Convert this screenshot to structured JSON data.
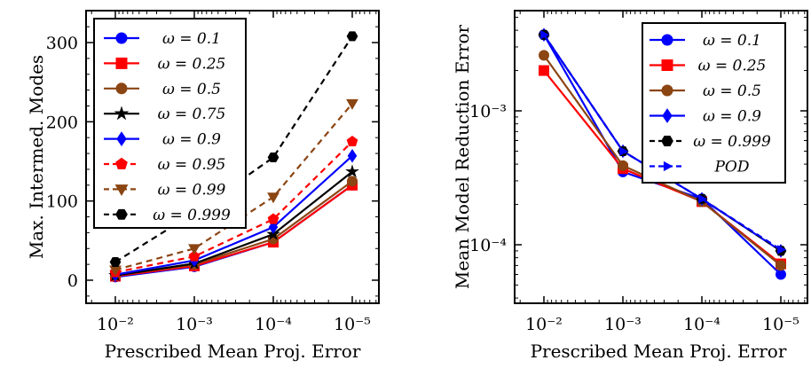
{
  "charts": [
    {
      "id": "left",
      "xlabel": "Prescribed Mean Proj. Error",
      "ylabel": "Max. Intermed. Modes",
      "x_ticks": [
        "10⁻²",
        "10⁻³",
        "10⁻⁴",
        "10⁻⁵"
      ],
      "y_ticks": [
        "0",
        "100",
        "200",
        "300"
      ]
    },
    {
      "id": "right",
      "xlabel": "Prescribed Mean Proj. Error",
      "ylabel": "Mean Model Reduction Error",
      "x_ticks": [
        "10⁻²",
        "10⁻³",
        "10⁻⁴",
        "10⁻⁵"
      ],
      "y_ticks": [
        "10⁻³",
        "10⁻⁴"
      ]
    }
  ],
  "chart_data": [
    {
      "type": "line",
      "x": [
        0.01,
        0.001,
        0.0001,
        1e-05
      ],
      "xscale": "log-reversed",
      "xlabel": "Prescribed Mean Proj. Error",
      "ylabel": "Max. Intermed. Modes",
      "ylim": [
        -30,
        335
      ],
      "legend": "upper-left",
      "grid": false,
      "series": [
        {
          "name": "ω = 0.1",
          "values": [
            4,
            17,
            48,
            120
          ],
          "color": "#0000ff",
          "linestyle": "solid",
          "marker": "circle"
        },
        {
          "name": "ω = 0.25",
          "values": [
            5,
            18,
            48,
            120
          ],
          "color": "#ff0000",
          "linestyle": "solid",
          "marker": "square"
        },
        {
          "name": "ω = 0.5",
          "values": [
            6,
            20,
            52,
            125
          ],
          "color": "#8b4513",
          "linestyle": "solid",
          "marker": "circle"
        },
        {
          "name": "ω = 0.75",
          "values": [
            6,
            21,
            58,
            137
          ],
          "color": "#000000",
          "linestyle": "solid",
          "marker": "star"
        },
        {
          "name": "ω = 0.9",
          "values": [
            7,
            25,
            67,
            157
          ],
          "color": "#0000ff",
          "linestyle": "solid",
          "marker": "diamond"
        },
        {
          "name": "ω = 0.95",
          "values": [
            10,
            30,
            77,
            175
          ],
          "color": "#ff0000",
          "linestyle": "dashed",
          "marker": "pentagon"
        },
        {
          "name": "ω = 0.99",
          "values": [
            13,
            40,
            105,
            223
          ],
          "color": "#8b4513",
          "linestyle": "dashed",
          "marker": "triangle-down"
        },
        {
          "name": "ω = 0.999",
          "values": [
            23,
            85,
            155,
            308
          ],
          "color": "#000000",
          "linestyle": "dashed",
          "marker": "hexagon"
        }
      ]
    },
    {
      "type": "line",
      "x": [
        0.01,
        0.001,
        0.0001,
        1e-05
      ],
      "xscale": "log-reversed",
      "yscale": "log",
      "xlabel": "Prescribed Mean Proj. Error",
      "ylabel": "Mean Model Reduction Error",
      "ylim": [
        4e-05,
        0.006
      ],
      "legend": "upper-right",
      "grid": false,
      "series": [
        {
          "name": "ω = 0.1",
          "values": [
            0.0037,
            0.00035,
            0.00022,
            6e-05
          ],
          "color": "#0000ff",
          "linestyle": "solid",
          "marker": "circle"
        },
        {
          "name": "ω = 0.25",
          "values": [
            0.002,
            0.00037,
            0.00021,
            7.2e-05
          ],
          "color": "#ff0000",
          "linestyle": "solid",
          "marker": "square"
        },
        {
          "name": "ω = 0.5",
          "values": [
            0.0026,
            0.00039,
            0.00021,
            7e-05
          ],
          "color": "#8b4513",
          "linestyle": "solid",
          "marker": "circle"
        },
        {
          "name": "ω = 0.9",
          "values": [
            0.0037,
            0.0005,
            0.00022,
            9e-05
          ],
          "color": "#0000ff",
          "linestyle": "solid",
          "marker": "diamond"
        },
        {
          "name": "ω = 0.999",
          "values": [
            0.0037,
            0.0005,
            0.00022,
            9e-05
          ],
          "color": "#000000",
          "linestyle": "dashed",
          "marker": "hexagon"
        },
        {
          "name": "POD",
          "values": [
            0.0037,
            0.0005,
            0.00022,
            9.2e-05
          ],
          "color": "#0000ff",
          "linestyle": "dashed",
          "marker": "tri-right"
        }
      ]
    }
  ]
}
